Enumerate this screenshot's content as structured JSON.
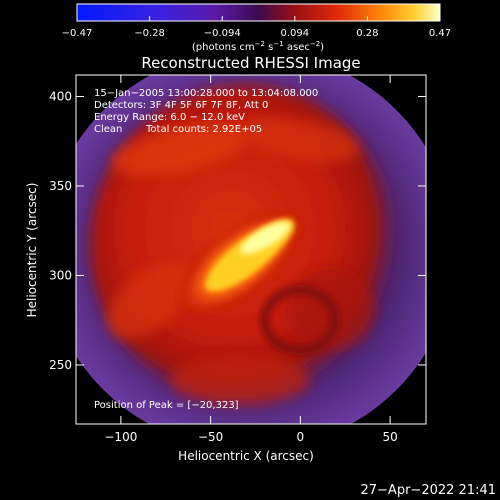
{
  "colorbar": {
    "ticks": [
      "−0.47",
      "−0.28",
      "−0.094",
      "0.094",
      "0.28",
      "0.47"
    ],
    "units_main": "(photons cm",
    "units_exp1": "−2",
    "units_mid": " s",
    "units_exp2": "−1",
    "units_end": " asec",
    "units_exp3": "−2",
    "units_close": ")"
  },
  "plot": {
    "title": "Reconstructed RHESSI Image",
    "xlabel": "Heliocentric X (arcsec)",
    "ylabel": "Heliocentric Y (arcsec)",
    "x_ticks": [
      {
        "value": -100,
        "label": "−100"
      },
      {
        "value": -50,
        "label": "−50"
      },
      {
        "value": 0,
        "label": "0"
      },
      {
        "value": 50,
        "label": "50"
      }
    ],
    "y_ticks": [
      {
        "value": 250,
        "label": "250"
      },
      {
        "value": 300,
        "label": "300"
      },
      {
        "value": 350,
        "label": "350"
      },
      {
        "value": 400,
        "label": "400"
      }
    ],
    "xlim": [
      -125,
      70
    ],
    "ylim": [
      217,
      412
    ]
  },
  "annotations": {
    "line1": "15−Jan−2005 13:00:28.000 to 13:04:08.000",
    "line2": "Detectors: 3F 4F 5F 6F 7F 8F, Att 0",
    "line3": "Energy Range: 6.0 − 12.0 keV",
    "line4_a": "Clean",
    "line4_b": "Total counts: 2.92E+05",
    "peak": "Position of Peak = [−20,323]"
  },
  "footer": {
    "timestamp": "27−Apr−2022 21:41"
  },
  "colors": {
    "background": "#000000",
    "frame": "#ffffff",
    "halo": "#5a2a8a",
    "flare_low": "#c51a08",
    "flare_high": "#ffff90"
  },
  "image_shapes": {
    "peak": [
      -20,
      323
    ]
  }
}
